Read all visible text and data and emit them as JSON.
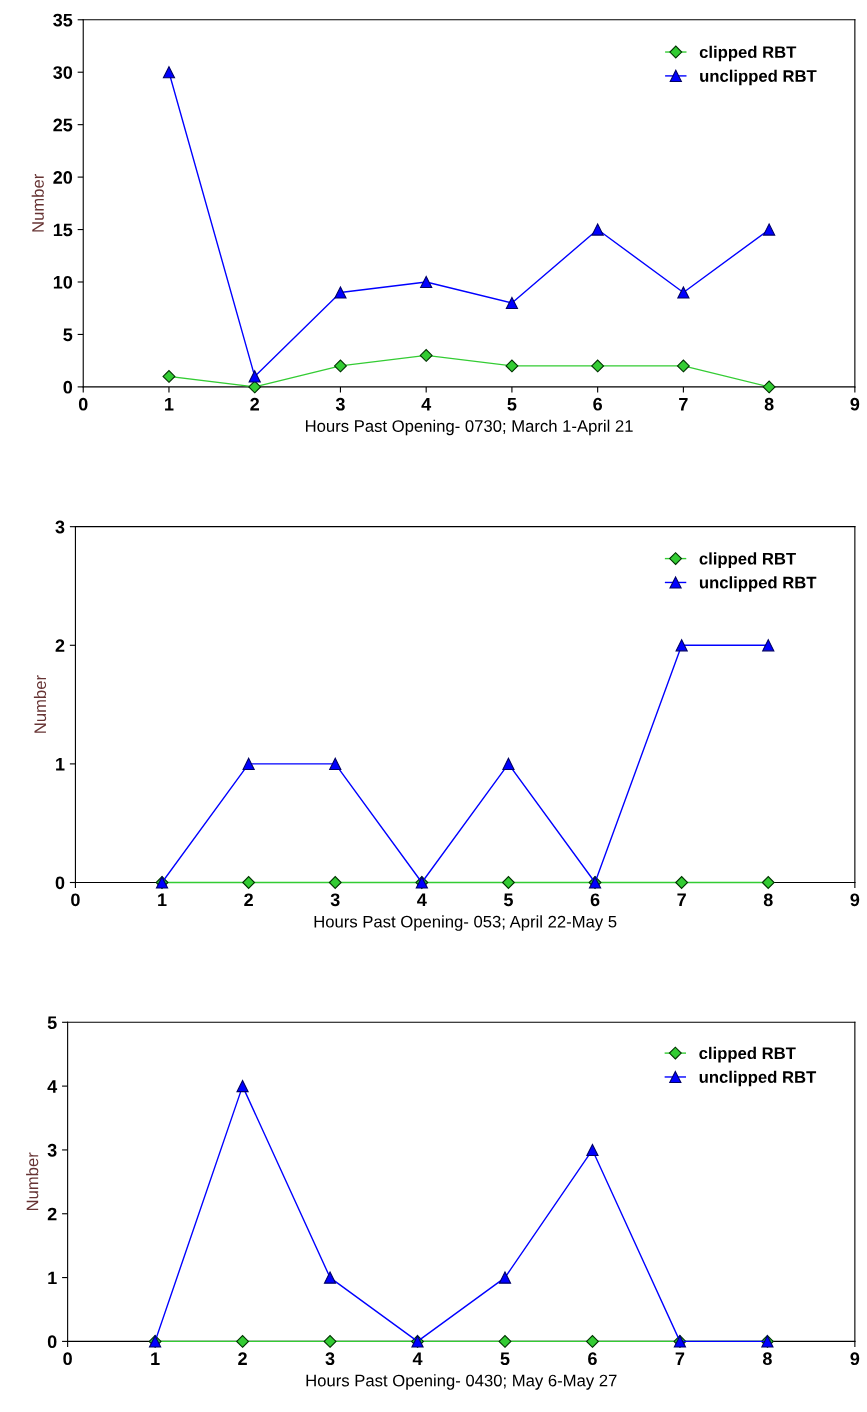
{
  "chart_data": [
    {
      "type": "line",
      "xlabel": "Hours Past Opening- 0730; March 1-April 21",
      "ylabel": "Number",
      "x": [
        1,
        2,
        3,
        4,
        5,
        6,
        7,
        8
      ],
      "xlim": [
        0,
        9
      ],
      "xticks": [
        0,
        1,
        2,
        3,
        4,
        5,
        6,
        7,
        8,
        9
      ],
      "ylim": [
        0,
        35
      ],
      "yticks": [
        0,
        5,
        10,
        15,
        20,
        25,
        30,
        35
      ],
      "grid": false,
      "legend": "top right",
      "series": [
        {
          "name": "clipped RBT",
          "color": "#33cc33",
          "marker": "diamond",
          "values": [
            1,
            0,
            2,
            3,
            2,
            2,
            2,
            0
          ]
        },
        {
          "name": "unclipped RBT",
          "color": "#0000ff",
          "marker": "triangle",
          "values": [
            30,
            1,
            9,
            10,
            8,
            15,
            9,
            15
          ]
        }
      ]
    },
    {
      "type": "line",
      "xlabel": "Hours Past Opening- 053; April 22-May 5",
      "ylabel": "Number",
      "x": [
        1,
        2,
        3,
        4,
        5,
        6,
        7,
        8
      ],
      "xlim": [
        0,
        9
      ],
      "xticks": [
        0,
        1,
        2,
        3,
        4,
        5,
        6,
        7,
        8,
        9
      ],
      "ylim": [
        0,
        3
      ],
      "yticks": [
        0,
        1,
        2,
        3
      ],
      "grid": false,
      "legend": "top right",
      "series": [
        {
          "name": "clipped RBT",
          "color": "#33cc33",
          "marker": "diamond",
          "values": [
            0,
            0,
            0,
            0,
            0,
            0,
            0,
            0
          ]
        },
        {
          "name": "unclipped RBT",
          "color": "#0000ff",
          "marker": "triangle",
          "values": [
            0,
            1,
            1,
            0,
            1,
            0,
            2,
            2
          ]
        }
      ]
    },
    {
      "type": "line",
      "xlabel": "Hours Past Opening- 0430; May 6-May 27",
      "ylabel": "Number",
      "x": [
        1,
        2,
        3,
        4,
        5,
        6,
        7,
        8
      ],
      "xlim": [
        0,
        9
      ],
      "xticks": [
        0,
        1,
        2,
        3,
        4,
        5,
        6,
        7,
        8,
        9
      ],
      "ylim": [
        0,
        5
      ],
      "yticks": [
        0,
        1,
        2,
        3,
        4,
        5
      ],
      "grid": false,
      "legend": "top right",
      "series": [
        {
          "name": "clipped RBT",
          "color": "#33cc33",
          "marker": "diamond",
          "values": [
            0,
            0,
            0,
            0,
            0,
            0,
            0,
            0
          ]
        },
        {
          "name": "unclipped RBT",
          "color": "#0000ff",
          "marker": "triangle",
          "values": [
            0,
            4,
            1,
            0,
            1,
            3,
            0,
            0
          ]
        }
      ]
    }
  ]
}
